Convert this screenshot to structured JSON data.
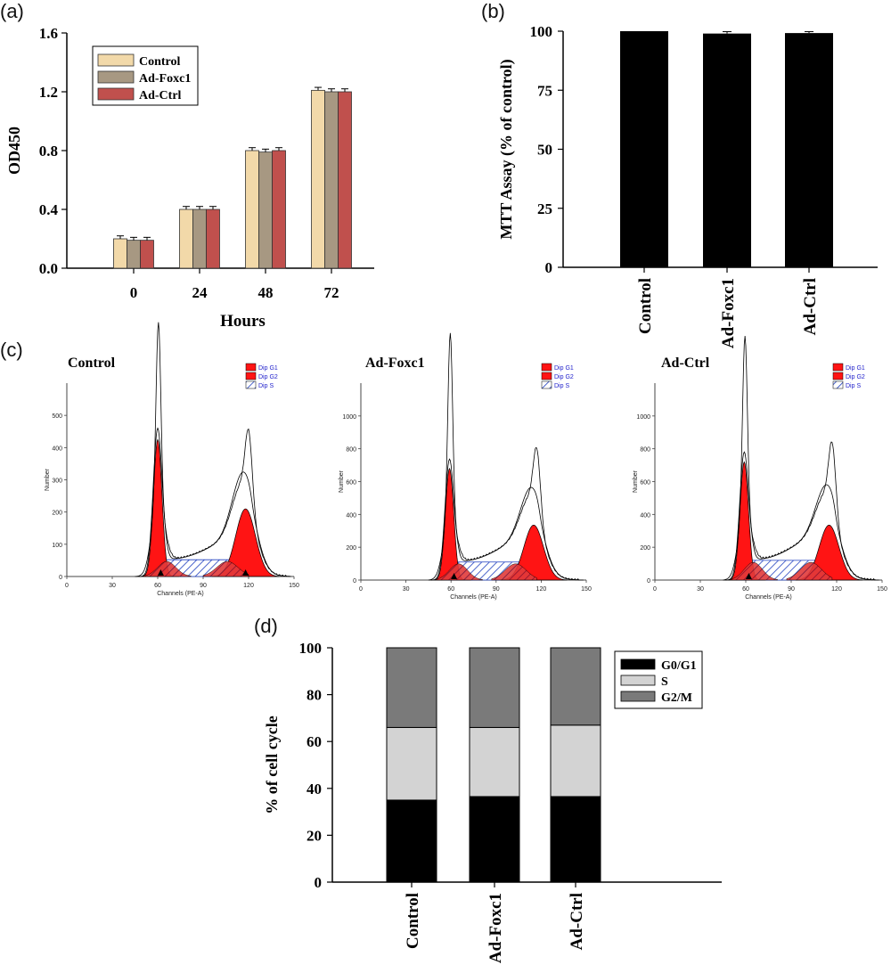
{
  "panels": {
    "a": "(a)",
    "b": "(b)",
    "c": "(c)",
    "d": "(d)"
  },
  "chart_data": [
    {
      "id": "a",
      "type": "bar",
      "xlabel": "Hours",
      "ylabel": "OD450",
      "categories": [
        "0",
        "24",
        "48",
        "72"
      ],
      "ylim": [
        0.0,
        1.6
      ],
      "yticks": [
        "0.0",
        "0.4",
        "0.8",
        "1.2",
        "1.6"
      ],
      "legend_position": "top-left",
      "series": [
        {
          "name": "Control",
          "color": "#f2d9a9",
          "values": [
            0.2,
            0.4,
            0.8,
            1.21
          ],
          "errors": [
            0.02,
            0.02,
            0.02,
            0.02
          ]
        },
        {
          "name": "Ad-Foxc1",
          "color": "#a79882",
          "values": [
            0.19,
            0.4,
            0.79,
            1.2
          ],
          "errors": [
            0.02,
            0.02,
            0.02,
            0.02
          ]
        },
        {
          "name": "Ad-Ctrl",
          "color": "#c0504d",
          "values": [
            0.19,
            0.4,
            0.8,
            1.2
          ],
          "errors": [
            0.02,
            0.02,
            0.02,
            0.02
          ]
        }
      ]
    },
    {
      "id": "b",
      "type": "bar",
      "xlabel": "",
      "ylabel": "MTT Assay (% of control)",
      "categories": [
        "Control",
        "Ad-Foxc1",
        "Ad-Ctrl"
      ],
      "ylim": [
        0,
        100
      ],
      "yticks": [
        "0",
        "25",
        "50",
        "75",
        "100"
      ],
      "color": "#000000",
      "values": [
        100,
        99,
        99.2
      ],
      "errors": [
        0,
        0.8,
        0.6
      ]
    },
    {
      "id": "c",
      "type": "histogram",
      "xlabel": "Channels (PE-A)",
      "ylabel": "Number",
      "xticks": [
        "0",
        "30",
        "60",
        "90",
        "120",
        "150"
      ],
      "legend": [
        "Dip G1",
        "Dip G2",
        "Dip S"
      ],
      "plots": [
        {
          "title": "Control",
          "ymax": 600,
          "yticks": [
            "0",
            "100",
            "200",
            "300",
            "400",
            "500"
          ],
          "g1_peak": 425,
          "g1_pos": 60,
          "g2_peak": 210,
          "g2_pos": 118,
          "s_level": 52,
          "env_peak1": 555,
          "env_peak2": 285,
          "markers": [
            62,
            118
          ]
        },
        {
          "title": "Ad-Foxc1",
          "ymax": 1200,
          "yticks": [
            "0",
            "200",
            "400",
            "600",
            "800",
            "1000"
          ],
          "g1_peak": 680,
          "g1_pos": 59,
          "g2_peak": 335,
          "g2_pos": 115,
          "s_level": 110,
          "env_peak1": 1130,
          "env_peak2": 510,
          "markers": [
            62
          ]
        },
        {
          "title": "Ad-Ctrl",
          "ymax": 1200,
          "yticks": [
            "0",
            "200",
            "400",
            "600",
            "800",
            "1000"
          ],
          "g1_peak": 720,
          "g1_pos": 59,
          "g2_peak": 335,
          "g2_pos": 115,
          "s_level": 120,
          "env_peak1": 1090,
          "env_peak2": 540,
          "markers": [
            62
          ]
        }
      ]
    },
    {
      "id": "d",
      "type": "bar",
      "stacked": true,
      "xlabel": "",
      "ylabel": "% of cell cycle",
      "categories": [
        "Control",
        "Ad-Foxc1",
        "Ad-Ctrl"
      ],
      "ylim": [
        0,
        100
      ],
      "yticks": [
        "0",
        "20",
        "40",
        "60",
        "80",
        "100"
      ],
      "legend_position": "top-right",
      "series": [
        {
          "name": "G0/G1",
          "color": "#000000",
          "values": [
            35,
            36.5,
            36.5
          ]
        },
        {
          "name": "S",
          "color": "#d3d3d3",
          "values": [
            31,
            29.5,
            30.5
          ]
        },
        {
          "name": "G2/M",
          "color": "#7a7a7a",
          "values": [
            34,
            34,
            33
          ]
        }
      ]
    }
  ]
}
